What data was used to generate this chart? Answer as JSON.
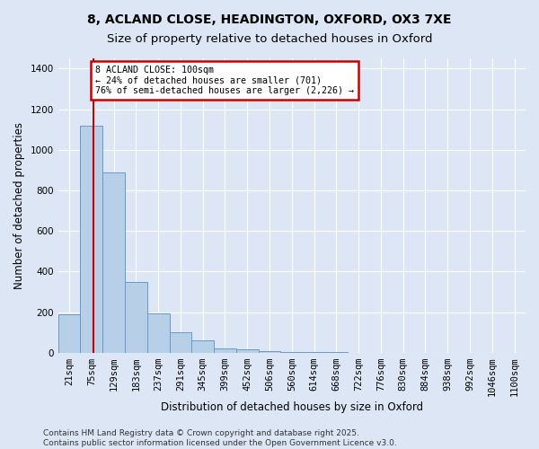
{
  "title_line1": "8, ACLAND CLOSE, HEADINGTON, OXFORD, OX3 7XE",
  "title_line2": "Size of property relative to detached houses in Oxford",
  "xlabel": "Distribution of detached houses by size in Oxford",
  "ylabel": "Number of detached properties",
  "bar_labels": [
    "21sqm",
    "75sqm",
    "129sqm",
    "183sqm",
    "237sqm",
    "291sqm",
    "345sqm",
    "399sqm",
    "452sqm",
    "506sqm",
    "560sqm",
    "614sqm",
    "668sqm",
    "722sqm",
    "776sqm",
    "830sqm",
    "884sqm",
    "938sqm",
    "992sqm",
    "1046sqm",
    "1100sqm"
  ],
  "bar_values": [
    190,
    1120,
    890,
    350,
    195,
    100,
    62,
    22,
    18,
    10,
    5,
    3,
    2,
    1,
    1,
    1,
    0,
    0,
    0,
    0,
    0
  ],
  "bar_color": "#b8cfe8",
  "bar_edge_color": "#6699cc",
  "annotation_text": "8 ACLAND CLOSE: 100sqm\n← 24% of detached houses are smaller (701)\n76% of semi-detached houses are larger (2,226) →",
  "annotation_box_color": "#ffffff",
  "annotation_box_edge_color": "#cc0000",
  "vline_color": "#cc0000",
  "vline_x": 1.1,
  "ylim": [
    0,
    1450
  ],
  "yticks": [
    0,
    200,
    400,
    600,
    800,
    1000,
    1200,
    1400
  ],
  "background_color": "#dce6f5",
  "grid_color": "#ffffff",
  "footer_line1": "Contains HM Land Registry data © Crown copyright and database right 2025.",
  "footer_line2": "Contains public sector information licensed under the Open Government Licence v3.0.",
  "title_fontsize": 10,
  "axis_label_fontsize": 8.5,
  "tick_fontsize": 7.5,
  "footer_fontsize": 6.5
}
